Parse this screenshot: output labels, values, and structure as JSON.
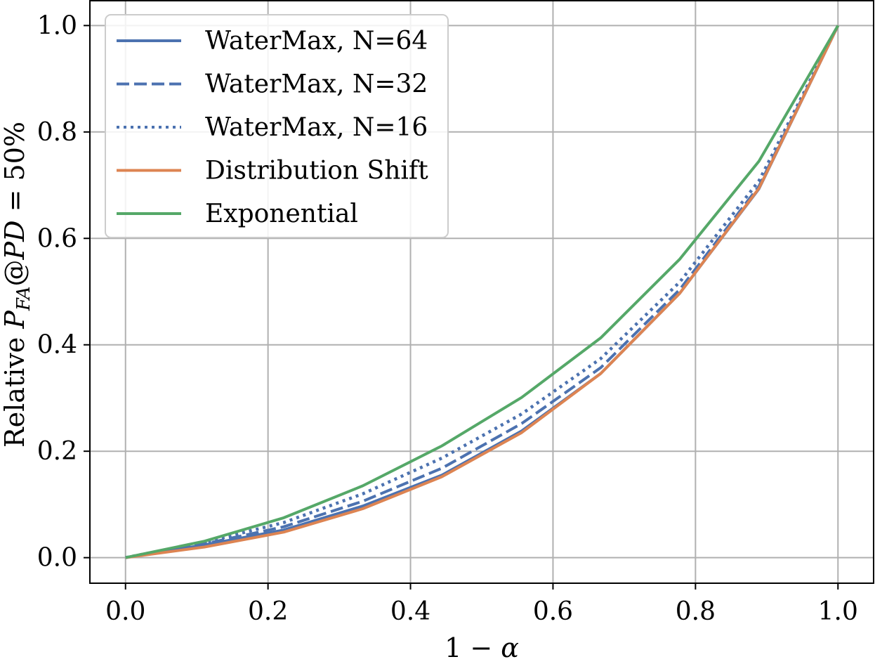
{
  "chart_data": {
    "type": "line",
    "title": "",
    "xlabel": "1 − α",
    "ylabel": "Relative P_FA@PD = 50%",
    "xlim": [
      -0.05,
      1.05
    ],
    "ylim": [
      -0.048,
      1.048
    ],
    "xticks": [
      0.0,
      0.2,
      0.4,
      0.6,
      0.8,
      1.0
    ],
    "yticks": [
      0.0,
      0.2,
      0.4,
      0.6,
      0.8,
      1.0
    ],
    "xtick_labels": [
      "0.0",
      "0.2",
      "0.4",
      "0.6",
      "0.8",
      "1.0"
    ],
    "ytick_labels": [
      "0.0",
      "0.2",
      "0.4",
      "0.6",
      "0.8",
      "1.0"
    ],
    "grid": true,
    "legend_position": "top-left",
    "x": [
      0.0,
      0.111,
      0.222,
      0.333,
      0.444,
      0.556,
      0.667,
      0.778,
      0.889,
      1.0
    ],
    "series": [
      {
        "name": "WaterMax, N=64",
        "style": "solid",
        "color": "#4c72b0",
        "values": [
          0.0,
          0.024,
          0.052,
          0.097,
          0.155,
          0.238,
          0.346,
          0.497,
          0.693,
          1.0
        ]
      },
      {
        "name": "WaterMax, N=32",
        "style": "dashed",
        "color": "#4c72b0",
        "values": [
          0.0,
          0.026,
          0.058,
          0.106,
          0.168,
          0.252,
          0.357,
          0.504,
          0.698,
          1.0
        ]
      },
      {
        "name": "WaterMax, N=16",
        "style": "dotted",
        "color": "#4c72b0",
        "values": [
          0.0,
          0.029,
          0.066,
          0.12,
          0.187,
          0.27,
          0.374,
          0.518,
          0.708,
          1.0
        ]
      },
      {
        "name": "Distribution Shift",
        "style": "solid",
        "color": "#dd8452",
        "values": [
          0.0,
          0.02,
          0.048,
          0.092,
          0.152,
          0.235,
          0.346,
          0.497,
          0.694,
          1.0
        ]
      },
      {
        "name": "Exponential",
        "style": "solid",
        "color": "#55a868",
        "values": [
          0.0,
          0.031,
          0.075,
          0.135,
          0.21,
          0.301,
          0.413,
          0.561,
          0.745,
          1.0
        ]
      }
    ]
  }
}
